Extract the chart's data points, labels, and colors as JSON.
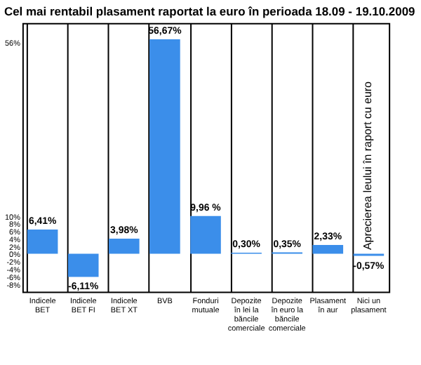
{
  "chart_data": {
    "type": "bar",
    "title": "Cel mai rentabil plasament raportat la euro în perioada 18.09 - 19.10.2009",
    "categories": [
      "Indicele BET",
      "Indicele BET FI",
      "Indicele BET XT",
      "BVB",
      "Fonduri mutuale",
      "Depozite în lei la băncile comerciale",
      "Depozite în euro la băncile comerciale",
      "Plasament în aur",
      "Nici un plasament"
    ],
    "values": [
      6.41,
      -6.11,
      3.98,
      56.67,
      9.96,
      0.3,
      0.35,
      2.33,
      -0.57
    ],
    "value_labels": [
      "6,41%",
      "-6,11%",
      "3,98%",
      "56,67%",
      "9,96 %",
      "0,30%",
      "0,35%",
      "2,33%",
      "-0,57%"
    ],
    "color": "#3b8eea",
    "ylim": [
      -10,
      61
    ],
    "yticks": [
      {
        "value": -8,
        "label": "-8%"
      },
      {
        "value": -6,
        "label": "-6%"
      },
      {
        "value": -4,
        "label": "-4%"
      },
      {
        "value": -2,
        "label": "-2%"
      },
      {
        "value": 0,
        "label": "0%"
      },
      {
        "value": 2,
        "label": "2%"
      },
      {
        "value": 4,
        "label": "4%"
      },
      {
        "value": 6,
        "label": "6%"
      },
      {
        "value": 8,
        "label": "8%"
      },
      {
        "value": 10,
        "label": "10%"
      },
      {
        "value": 56,
        "label": "56%"
      }
    ],
    "grid": "x",
    "annotations": [
      {
        "text": "Aprecierea leului în raport cu euro",
        "x": "Nici un plasament",
        "y": 1
      }
    ]
  }
}
